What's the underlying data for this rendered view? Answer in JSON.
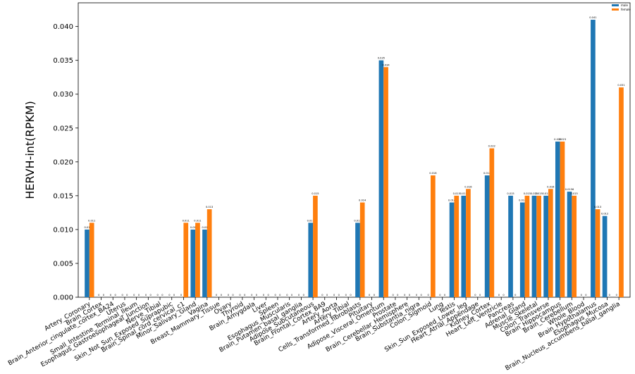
{
  "chart_data": {
    "type": "bar",
    "ylabel": "HERVH-int(RPKM)",
    "ylim": [
      0,
      0.0435
    ],
    "yticks": [
      "0.000",
      "0.005",
      "0.010",
      "0.015",
      "0.020",
      "0.025",
      "0.030",
      "0.035",
      "0.040"
    ],
    "ytick_values": [
      0,
      0.005,
      0.01,
      0.015,
      0.02,
      0.025,
      0.03,
      0.035,
      0.04
    ],
    "legend_position": "top-right",
    "grid": false,
    "categories": [
      "Artery_Coronary",
      "Brain_Cortex",
      "Brain_Anterior_cingulate_cortex_BA24",
      "Uterus",
      "Small_Intestine_Terminal_Ileum",
      "Esophagus_Gastroesophageal_Junction",
      "Nerve_Tibial",
      "Skin_Not_Sun_Exposed_Suprapubic",
      "Brain_Spinal_cord_cervical_c1",
      "Minor_Salivary_Gland",
      "Vagina",
      "Breast_Mammary_Tissue",
      "Ovary",
      "Thyroid",
      "Brain_Amygdala",
      "Liver",
      "Spleen",
      "Esophagus_Muscularis",
      "Brain_Putamen_basal_ganglia",
      "Adipose_Subcutaneous",
      "Brain_Frontal_Cortex_BA9",
      "Artery_Aorta",
      "Artery_Tibial",
      "Cells_Transformed_fibroblasts",
      "Pituitary",
      "Adipose_Visceral_Omentum",
      "Prostate",
      "Brain_Cerebellar_Hemisphere",
      "Brain_Substantia_nigra",
      "Colon_Sigmoid",
      "Lung",
      "Testis",
      "Skin_Sun_Exposed_Lower_leg",
      "Heart_Atrial_Appendage",
      "Kidney_Cortex",
      "Heart_Left_Ventricle",
      "Pancreas",
      "Adrenal_Gland",
      "Muscle_Skeletal",
      "Colon_Transverse",
      "Brain_Hippocampus",
      "Brain_Cerebellum",
      "Whole_Blood",
      "Brain_Hypothalamus",
      "Esophagus_Mucosa",
      "Brain_Nucleus_accumbens_basal_ganglia"
    ],
    "series": [
      {
        "name": "male",
        "color": "#1f77b4",
        "values": [
          0.01,
          0,
          0,
          0,
          0,
          0,
          0,
          0,
          0,
          0.01,
          0.01,
          0,
          0,
          0,
          0,
          0,
          0,
          0,
          0,
          0.011,
          0,
          0,
          0,
          0.011,
          0,
          0.035,
          0,
          0,
          0,
          0,
          0,
          0.014,
          0.015,
          0,
          0.018,
          0,
          0.015,
          0.014,
          0.015,
          0.015,
          0.023,
          0.0156,
          0,
          0.041,
          0.012,
          0
        ],
        "labels": [
          "0.01",
          "0",
          "0",
          "0",
          "0",
          "0",
          "0",
          "0",
          "0",
          "0.01",
          "0.01",
          "0",
          "0",
          "0",
          "0",
          "0",
          "0",
          "0",
          "0",
          "0.011",
          "0",
          "0",
          "0",
          "0.011",
          "0",
          "0.035",
          "0",
          "0",
          "0",
          "0",
          "0",
          "0.014",
          "0.015",
          "0",
          "0.018",
          "0",
          "0.015",
          "0.014",
          "0.015",
          "0.015",
          "0.023",
          "0.0156",
          "0",
          "0.041",
          "0.012",
          "0"
        ]
      },
      {
        "name": "female",
        "color": "#ff7f0e",
        "values": [
          0.011,
          0,
          0,
          0,
          0,
          0,
          0,
          0,
          0.011,
          0.011,
          0.013,
          0,
          0,
          0,
          0,
          0,
          0,
          0,
          0,
          0.015,
          0,
          0,
          0,
          0.014,
          0,
          0.034,
          0,
          0,
          0,
          0.018,
          0,
          0.015,
          0.016,
          0,
          0.022,
          0,
          0,
          0.015,
          0.015,
          0.016,
          0.023,
          0.015,
          0,
          0.013,
          0,
          0.031
        ],
        "labels": [
          "0.011",
          "0",
          "0",
          "0",
          "0",
          "0",
          "0",
          "0",
          "0.011",
          "0.011",
          "0.013",
          "0",
          "0",
          "0",
          "0",
          "0",
          "0",
          "0",
          "0",
          "0.015",
          "0",
          "0",
          "0",
          "0.014",
          "0",
          "0.034",
          "0",
          "0",
          "0",
          "0.018",
          "0",
          "0.015",
          "0.016",
          "0",
          "0.022",
          "0",
          "0",
          "0.015",
          "0.015",
          "0.016",
          "0.023",
          "0.015",
          "0",
          "0.013",
          "0",
          "0.031"
        ]
      }
    ]
  }
}
